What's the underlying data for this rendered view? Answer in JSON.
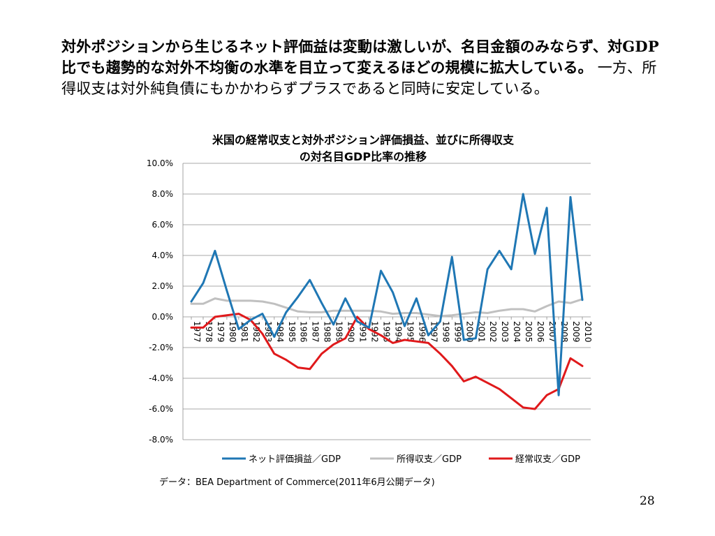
{
  "slide": {
    "heading_bold": "対外ポジションから生じるネット評価益は変動は激しいが、名目金額のみならず、対GDP比でも趨勢的な対外不均衡の水準を目立って変えるほどの規模に拡大している。",
    "heading_plain": "一方、所得収支は対外純負債にもかかわらずプラスであると同時に安定している。",
    "source": "データ：BEA Department of Commerce(2011年6月公開データ)",
    "page_number": "28"
  },
  "chart_data": {
    "type": "line",
    "title": "米国の経常収支と対外ポジション評価損益、並びに所得収支の対名目GDP比率の推移",
    "title_lines": [
      "米国の経常収支と対外ポジション評価損益、並びに所得収支",
      "の対名目GDP比率の推移"
    ],
    "xlabel": "",
    "ylabel": "",
    "ylim": [
      -8,
      10
    ],
    "y_ticks": [
      "10.0%",
      "8.0%",
      "6.0%",
      "4.0%",
      "2.0%",
      "0.0%",
      "-2.0%",
      "-4.0%",
      "-6.0%",
      "-8.0%"
    ],
    "grid": true,
    "legend_position": "bottom",
    "categories": [
      "1977",
      "1978",
      "1979",
      "1980",
      "1981",
      "1982",
      "1983",
      "1984",
      "1985",
      "1986",
      "1987",
      "1988",
      "1989",
      "1990",
      "1991",
      "1992",
      "1993",
      "1994",
      "1995",
      "1996",
      "1997",
      "1998",
      "1999",
      "2000",
      "2001",
      "2002",
      "2003",
      "2004",
      "2005",
      "2006",
      "2007",
      "2008",
      "2009",
      "2010"
    ],
    "series": [
      {
        "name": "ネット評価損益／GDP",
        "color": "#1f77b4",
        "values": [
          1.0,
          2.2,
          4.3,
          1.7,
          -0.8,
          -0.2,
          0.2,
          -1.3,
          0.3,
          1.3,
          2.4,
          0.9,
          -0.5,
          1.2,
          -0.3,
          -0.7,
          3.0,
          1.6,
          -0.6,
          1.2,
          -1.2,
          -0.3,
          3.9,
          -1.5,
          -1.4,
          3.1,
          4.3,
          3.1,
          8.0,
          4.1,
          7.1,
          -5.1,
          7.8,
          1.1
        ]
      },
      {
        "name": "所得収支／GDP",
        "color": "#c0c0c0",
        "values": [
          0.85,
          0.85,
          1.2,
          1.05,
          1.05,
          1.05,
          1.0,
          0.85,
          0.6,
          0.35,
          0.3,
          0.3,
          0.4,
          0.4,
          0.4,
          0.4,
          0.35,
          0.2,
          0.25,
          0.25,
          0.15,
          0.05,
          0.1,
          0.2,
          0.3,
          0.25,
          0.4,
          0.5,
          0.5,
          0.35,
          0.7,
          1.0,
          0.9,
          1.15
        ]
      },
      {
        "name": "経常収支／GDP",
        "color": "#e0191b",
        "values": [
          -0.7,
          -0.7,
          0.0,
          0.1,
          0.2,
          -0.2,
          -1.1,
          -2.4,
          -2.8,
          -3.3,
          -3.4,
          -2.4,
          -1.8,
          -1.4,
          0.0,
          -0.8,
          -1.2,
          -1.7,
          -1.5,
          -1.6,
          -1.7,
          -2.4,
          -3.2,
          -4.2,
          -3.9,
          -4.3,
          -4.7,
          -5.3,
          -5.9,
          -6.0,
          -5.1,
          -4.7,
          -2.7,
          -3.2
        ]
      }
    ]
  }
}
